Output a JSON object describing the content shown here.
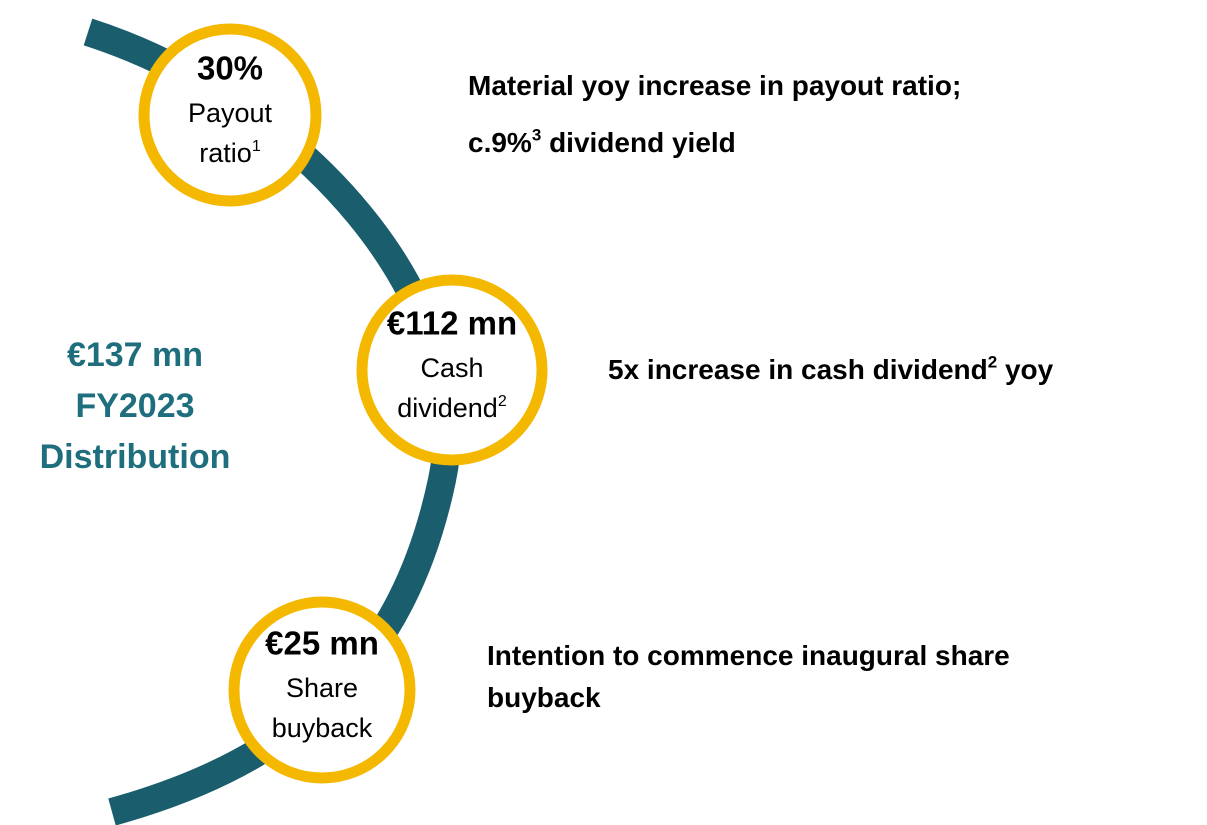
{
  "center": {
    "lines": [
      "€137 mn",
      "FY2023",
      "Distribution"
    ]
  },
  "nodes": [
    {
      "value": "30%",
      "label": [
        [
          {
            "text": "Payout"
          }
        ],
        [
          {
            "text": "ratio"
          },
          {
            "sup": "1"
          }
        ]
      ],
      "description": [
        [
          {
            "text": "Material yoy increase in payout ratio;"
          }
        ],
        [
          {
            "text": "c.9%"
          },
          {
            "sup": "3"
          },
          {
            "text": " dividend yield"
          }
        ]
      ]
    },
    {
      "value": "€112 mn",
      "label": [
        [
          {
            "text": "Cash"
          }
        ],
        [
          {
            "text": "dividend"
          },
          {
            "sup": "2"
          }
        ]
      ],
      "description": [
        [
          {
            "text": "5x increase in cash dividend"
          },
          {
            "sup": "2"
          },
          {
            "text": " yoy"
          }
        ]
      ]
    },
    {
      "value": "€25 mn",
      "label": [
        [
          {
            "text": "Share"
          }
        ],
        [
          {
            "text": "buyback"
          }
        ]
      ],
      "description": [
        [
          {
            "text": "Intention to commence inaugural share"
          }
        ],
        [
          {
            "text": "buyback"
          }
        ]
      ]
    }
  ]
}
